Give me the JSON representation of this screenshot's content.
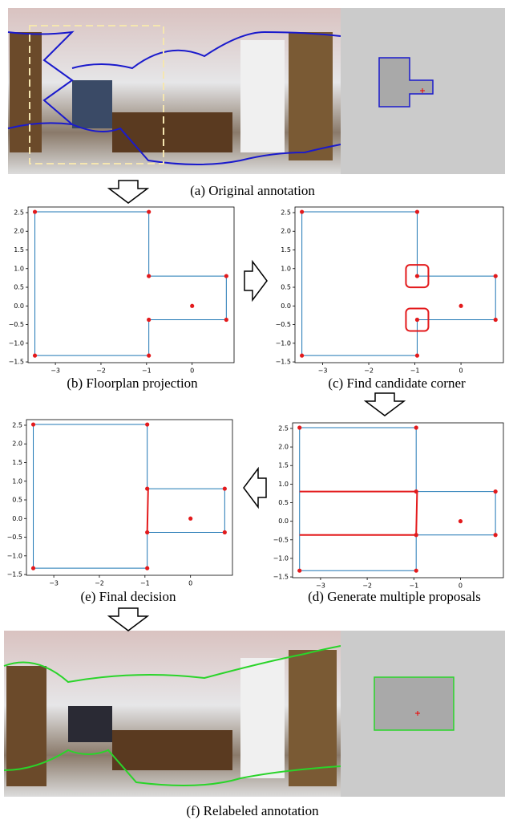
{
  "captions": [
    "(a) Original annotation",
    "(b) Floorplan projection",
    "(c) Find candidate corner",
    "(d) Generate multiple proposals",
    "(e) Final decision",
    "(f) Relabeled annotation"
  ],
  "chart_data": [
    {
      "type": "line",
      "xlim": [
        -3.6,
        0.92
      ],
      "ylim": [
        -1.52,
        2.65
      ],
      "xticks": [
        {
          "value": -3,
          "label": "−3"
        },
        {
          "value": -2,
          "label": "−2"
        },
        {
          "value": -1,
          "label": "−1"
        },
        0
      ],
      "yticks": [
        {
          "value": -1.5,
          "label": "−1.5"
        },
        {
          "value": -1.0,
          "label": "−1.0"
        },
        {
          "value": -0.5,
          "label": "−0.5"
        },
        {
          "value": 0.0,
          "label": "0.0"
        },
        0.5,
        {
          "value": 1.0,
          "label": "1.0"
        },
        1.5,
        {
          "value": 2.0,
          "label": "2.0"
        },
        2.5
      ],
      "series": [
        {
          "color": "#1f77b4",
          "linewidth": 1,
          "x": [
            -3.45,
            -0.95,
            -0.95,
            0.75,
            0.75,
            -0.95,
            -0.95,
            -3.45,
            -3.45
          ],
          "y": [
            2.52,
            2.52,
            0.8,
            0.8,
            -0.37,
            -0.37,
            -1.33,
            -1.33,
            2.52
          ]
        }
      ],
      "points": {
        "color": "#e31a1c",
        "x": [
          -3.45,
          -0.95,
          -0.95,
          0.75,
          0.75,
          -0.95,
          -0.95,
          -3.45,
          0
        ],
        "y": [
          2.52,
          2.52,
          0.8,
          0.8,
          -0.37,
          -0.37,
          -1.33,
          -1.33,
          0
        ]
      }
    },
    {
      "type": "line",
      "xlim": [
        -3.6,
        0.92
      ],
      "ylim": [
        -1.52,
        2.65
      ],
      "xticks": [
        {
          "value": -3,
          "label": "−3"
        },
        {
          "value": -2,
          "label": "−2"
        },
        {
          "value": -1,
          "label": "−1"
        },
        0
      ],
      "yticks": [
        {
          "value": -1.5,
          "label": "−1.5"
        },
        {
          "value": -1.0,
          "label": "−1.0"
        },
        {
          "value": -0.5,
          "label": "−0.5"
        },
        {
          "value": 0.0,
          "label": "0.0"
        },
        0.5,
        {
          "value": 1.0,
          "label": "1.0"
        },
        1.5,
        {
          "value": 2.0,
          "label": "2.0"
        },
        2.5
      ],
      "series": [
        {
          "color": "#1f77b4",
          "linewidth": 1,
          "x": [
            -3.45,
            -0.95,
            -0.95,
            0.75,
            0.75,
            -0.95,
            -0.95,
            -3.45,
            -3.45
          ],
          "y": [
            2.52,
            2.52,
            0.8,
            0.8,
            -0.37,
            -0.37,
            -1.33,
            -1.33,
            2.52
          ]
        }
      ],
      "points": {
        "color": "#e31a1c",
        "x": [
          -3.45,
          -0.95,
          -0.95,
          0.75,
          0.75,
          -0.95,
          -0.95,
          -3.45,
          0
        ],
        "y": [
          2.52,
          2.52,
          0.8,
          0.8,
          -0.37,
          -0.37,
          -1.33,
          -1.33,
          0
        ]
      },
      "highlights": {
        "color": "#e31a1c",
        "x": [
          -0.95,
          -0.95
        ],
        "y": [
          0.8,
          -0.37
        ]
      }
    },
    {
      "type": "line",
      "xlim": [
        -3.6,
        0.92
      ],
      "ylim": [
        -1.52,
        2.65
      ],
      "xticks": [
        {
          "value": -3,
          "label": "−3"
        },
        {
          "value": -2,
          "label": "−2"
        },
        {
          "value": -1,
          "label": "−1"
        },
        0
      ],
      "yticks": [
        {
          "value": -1.5,
          "label": "−1.5"
        },
        {
          "value": -1.0,
          "label": "−1.0"
        },
        {
          "value": -0.5,
          "label": "−0.5"
        },
        {
          "value": 0.0,
          "label": "0.0"
        },
        0.5,
        {
          "value": 1.0,
          "label": "1.0"
        },
        1.5,
        {
          "value": 2.0,
          "label": "2.0"
        },
        2.5
      ],
      "series": [
        {
          "color": "#1f77b4",
          "linewidth": 1,
          "x": [
            -3.45,
            -0.95,
            -0.95,
            0.75,
            0.75,
            -0.95,
            -0.95,
            -3.45,
            -3.45
          ],
          "y": [
            2.52,
            2.52,
            0.8,
            0.8,
            -0.37,
            -0.37,
            -1.33,
            -1.33,
            2.52
          ]
        },
        {
          "color": "#e31a1c",
          "linewidth": 2,
          "x": [
            -3.45,
            -0.95
          ],
          "y": [
            0.8,
            0.8
          ]
        },
        {
          "color": "#e31a1c",
          "linewidth": 2,
          "x": [
            -3.45,
            -0.95
          ],
          "y": [
            -0.37,
            -0.37
          ]
        },
        {
          "color": "#e31a1c",
          "linewidth": 2,
          "x": [
            -0.93,
            -0.95
          ],
          "y": [
            0.8,
            -0.37
          ]
        }
      ],
      "points": {
        "color": "#e31a1c",
        "x": [
          -3.45,
          -0.95,
          -0.95,
          0.75,
          0.75,
          -0.95,
          -0.95,
          -3.45,
          0
        ],
        "y": [
          2.52,
          2.52,
          0.8,
          0.8,
          -0.37,
          -0.37,
          -1.33,
          -1.33,
          0
        ]
      }
    },
    {
      "type": "line",
      "xlim": [
        -3.6,
        0.92
      ],
      "ylim": [
        -1.52,
        2.65
      ],
      "xticks": [
        {
          "value": -3,
          "label": "−3"
        },
        {
          "value": -2,
          "label": "−2"
        },
        {
          "value": -1,
          "label": "−1"
        },
        0
      ],
      "yticks": [
        {
          "value": -1.5,
          "label": "−1.5"
        },
        {
          "value": -1.0,
          "label": "−1.0"
        },
        {
          "value": -0.5,
          "label": "−0.5"
        },
        {
          "value": 0.0,
          "label": "0.0"
        },
        0.5,
        {
          "value": 1.0,
          "label": "1.0"
        },
        1.5,
        {
          "value": 2.0,
          "label": "2.0"
        },
        2.5
      ],
      "series": [
        {
          "color": "#1f77b4",
          "linewidth": 1,
          "x": [
            -3.45,
            -0.95,
            -0.95,
            0.75,
            0.75,
            -0.95,
            -0.95,
            -3.45,
            -3.45
          ],
          "y": [
            2.52,
            2.52,
            0.8,
            0.8,
            -0.37,
            -0.37,
            -1.33,
            -1.33,
            2.52
          ]
        },
        {
          "color": "#e31a1c",
          "linewidth": 2,
          "x": [
            -0.93,
            -0.95
          ],
          "y": [
            0.8,
            -0.37
          ]
        }
      ],
      "points": {
        "color": "#e31a1c",
        "x": [
          -3.45,
          -0.95,
          -0.95,
          0.75,
          0.75,
          -0.95,
          -0.95,
          -3.45,
          0
        ],
        "y": [
          2.52,
          2.52,
          0.8,
          0.8,
          -0.37,
          -0.37,
          -1.33,
          -1.33,
          0
        ]
      }
    }
  ]
}
